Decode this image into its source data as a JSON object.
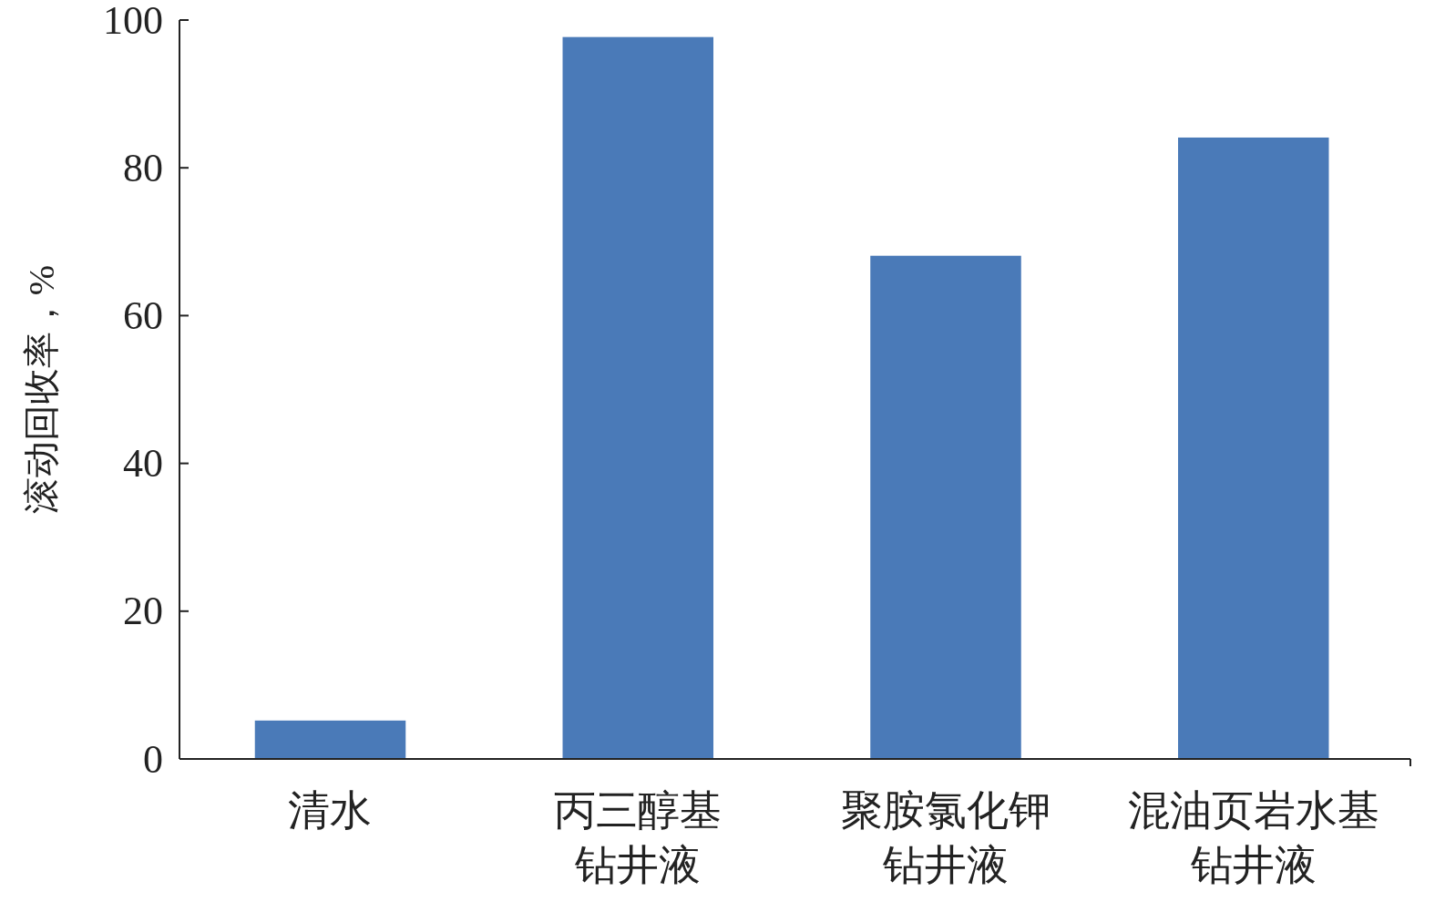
{
  "chart_data": {
    "type": "bar",
    "ylabel": "滚动回收率，%",
    "categories": [
      "清水",
      "丙三醇基钻井液",
      "聚胺氯化钾钻井液",
      "混油页岩水基钻井液"
    ],
    "values": [
      5.2,
      97.7,
      68.1,
      84.1
    ],
    "color": "#4a7ab8",
    "ylim": [
      0,
      100
    ],
    "yticks": [
      0,
      20,
      40,
      60,
      80,
      100
    ],
    "grid": false
  }
}
